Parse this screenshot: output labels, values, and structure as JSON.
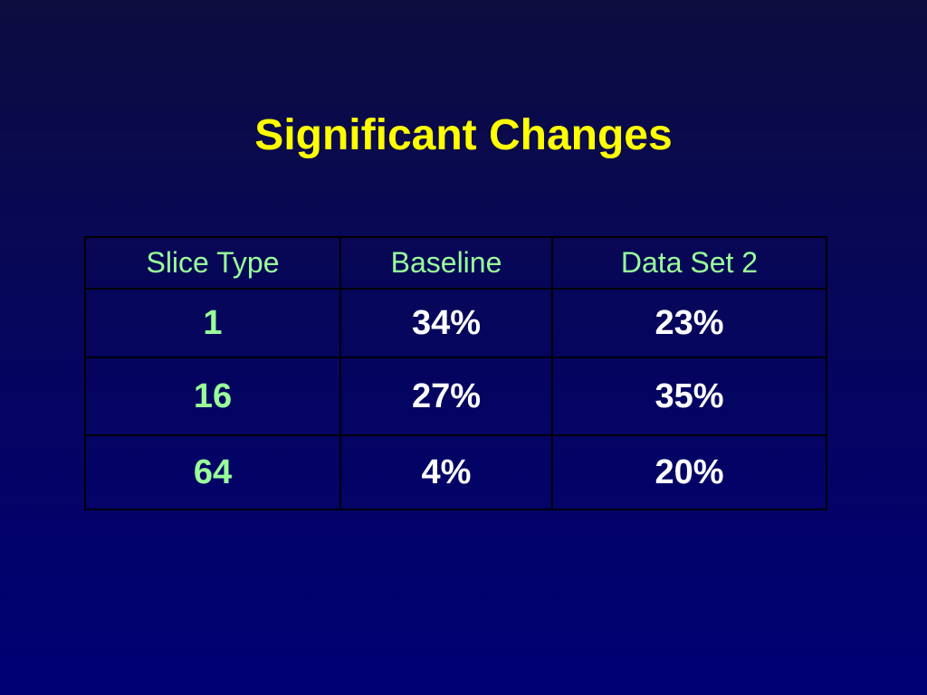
{
  "header": {
    "title": "Significant Changes"
  },
  "table": {
    "columns": [
      "Slice Type",
      "Baseline",
      "Data Set 2"
    ],
    "rows": [
      [
        "1",
        "34%",
        "23%"
      ],
      [
        "16",
        "27%",
        "35%"
      ],
      [
        "64",
        "4%",
        "20%"
      ]
    ]
  }
}
